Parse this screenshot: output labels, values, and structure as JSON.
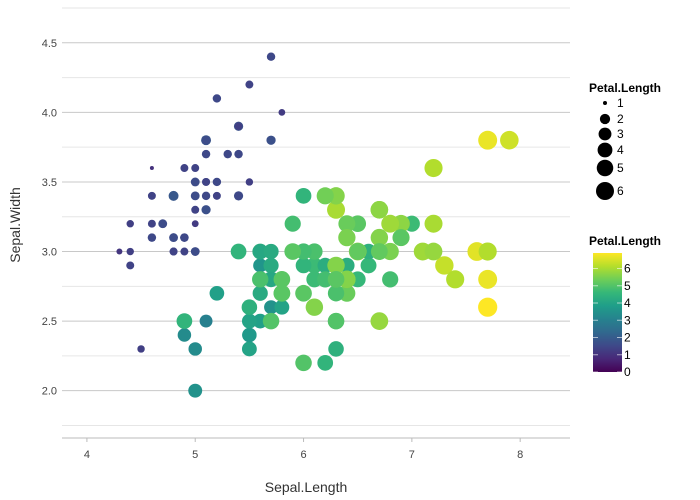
{
  "chart_data": {
    "type": "scatter",
    "xlabel": "Sepal.Length",
    "ylabel": "Sepal.Width",
    "xlim": [
      3.77,
      8.46
    ],
    "ylim": [
      1.66,
      4.75
    ],
    "x_ticks": [
      4,
      5,
      6,
      7,
      8
    ],
    "y_ticks": [
      2.0,
      2.5,
      3.0,
      3.5,
      4.0,
      4.5
    ],
    "x_tick_labels": [
      "4",
      "5",
      "6",
      "7",
      "8"
    ],
    "y_tick_labels": [
      "2.0",
      "2.5",
      "3.0",
      "3.5",
      "4.0",
      "4.5"
    ],
    "grid": "horizontal",
    "size_legend": {
      "title": "Petal.Length",
      "values": [
        1,
        2,
        3,
        4,
        5,
        6
      ],
      "labels": [
        "1",
        "2",
        "3",
        "4",
        "5",
        "6"
      ],
      "placement": "right"
    },
    "color_legend": {
      "title": "Petal.Length",
      "range": [
        0,
        6.9
      ],
      "ticks": [
        0,
        1,
        2,
        3,
        4,
        5,
        6
      ],
      "labels": [
        "0",
        "1",
        "2",
        "3",
        "4",
        "5",
        "6"
      ],
      "palette": [
        "#440154",
        "#482878",
        "#3e4989",
        "#31688e",
        "#26828e",
        "#1f9e89",
        "#35b779",
        "#6ece58",
        "#b5de2b",
        "#fde725"
      ],
      "placement": "right"
    },
    "columns": [
      "Sepal.Length",
      "Sepal.Width",
      "Petal.Length"
    ],
    "points": [
      [
        5.1,
        3.5,
        1.4
      ],
      [
        4.9,
        3.0,
        1.4
      ],
      [
        4.7,
        3.2,
        1.3
      ],
      [
        4.6,
        3.1,
        1.5
      ],
      [
        5.0,
        3.6,
        1.4
      ],
      [
        5.4,
        3.9,
        1.7
      ],
      [
        4.6,
        3.4,
        1.4
      ],
      [
        5.0,
        3.4,
        1.5
      ],
      [
        4.4,
        2.9,
        1.4
      ],
      [
        4.9,
        3.1,
        1.5
      ],
      [
        5.4,
        3.7,
        1.5
      ],
      [
        4.8,
        3.4,
        1.6
      ],
      [
        4.8,
        3.0,
        1.4
      ],
      [
        4.3,
        3.0,
        1.1
      ],
      [
        5.8,
        4.0,
        1.2
      ],
      [
        5.7,
        4.4,
        1.5
      ],
      [
        5.4,
        3.9,
        1.3
      ],
      [
        5.1,
        3.5,
        1.4
      ],
      [
        5.7,
        3.8,
        1.7
      ],
      [
        5.1,
        3.8,
        1.5
      ],
      [
        5.4,
        3.4,
        1.7
      ],
      [
        5.1,
        3.7,
        1.5
      ],
      [
        4.6,
        3.6,
        1.0
      ],
      [
        5.1,
        3.3,
        1.7
      ],
      [
        4.8,
        3.4,
        1.9
      ],
      [
        5.0,
        3.0,
        1.6
      ],
      [
        5.0,
        3.4,
        1.6
      ],
      [
        5.2,
        3.5,
        1.5
      ],
      [
        5.2,
        3.4,
        1.4
      ],
      [
        4.7,
        3.2,
        1.6
      ],
      [
        4.8,
        3.1,
        1.6
      ],
      [
        5.4,
        3.4,
        1.5
      ],
      [
        5.2,
        4.1,
        1.5
      ],
      [
        5.5,
        4.2,
        1.4
      ],
      [
        4.9,
        3.1,
        1.5
      ],
      [
        5.0,
        3.2,
        1.2
      ],
      [
        5.5,
        3.5,
        1.3
      ],
      [
        4.9,
        3.6,
        1.4
      ],
      [
        4.4,
        3.0,
        1.3
      ],
      [
        5.1,
        3.4,
        1.5
      ],
      [
        5.0,
        3.5,
        1.3
      ],
      [
        4.5,
        2.3,
        1.3
      ],
      [
        4.4,
        3.2,
        1.3
      ],
      [
        5.0,
        3.5,
        1.6
      ],
      [
        5.1,
        3.8,
        1.9
      ],
      [
        4.8,
        3.0,
        1.4
      ],
      [
        5.1,
        3.8,
        1.6
      ],
      [
        4.6,
        3.2,
        1.4
      ],
      [
        5.3,
        3.7,
        1.5
      ],
      [
        5.0,
        3.3,
        1.4
      ],
      [
        7.0,
        3.2,
        4.7
      ],
      [
        6.4,
        3.2,
        4.5
      ],
      [
        6.9,
        3.1,
        4.9
      ],
      [
        5.5,
        2.3,
        4.0
      ],
      [
        6.5,
        2.8,
        4.6
      ],
      [
        5.7,
        2.8,
        4.5
      ],
      [
        6.3,
        3.3,
        4.7
      ],
      [
        4.9,
        2.4,
        3.3
      ],
      [
        6.6,
        2.9,
        4.6
      ],
      [
        5.2,
        2.7,
        3.9
      ],
      [
        5.0,
        2.0,
        3.5
      ],
      [
        5.9,
        3.0,
        4.2
      ],
      [
        6.0,
        2.2,
        4.0
      ],
      [
        6.1,
        2.9,
        4.7
      ],
      [
        5.6,
        2.9,
        3.6
      ],
      [
        6.7,
        3.1,
        4.4
      ],
      [
        5.6,
        3.0,
        4.5
      ],
      [
        5.8,
        2.7,
        4.1
      ],
      [
        6.2,
        2.2,
        4.5
      ],
      [
        5.6,
        2.5,
        3.9
      ],
      [
        5.9,
        3.2,
        4.8
      ],
      [
        6.1,
        2.8,
        4.0
      ],
      [
        6.3,
        2.5,
        4.9
      ],
      [
        6.1,
        2.8,
        4.7
      ],
      [
        6.4,
        2.9,
        4.3
      ],
      [
        6.6,
        3.0,
        4.4
      ],
      [
        6.8,
        2.8,
        4.8
      ],
      [
        6.7,
        3.0,
        5.0
      ],
      [
        6.0,
        2.9,
        4.5
      ],
      [
        5.7,
        2.6,
        3.5
      ],
      [
        5.5,
        2.4,
        3.8
      ],
      [
        5.5,
        2.4,
        3.7
      ],
      [
        5.8,
        2.7,
        3.9
      ],
      [
        6.0,
        2.7,
        5.1
      ],
      [
        5.4,
        3.0,
        4.5
      ],
      [
        6.0,
        3.4,
        4.5
      ],
      [
        6.7,
        3.1,
        4.7
      ],
      [
        6.3,
        2.3,
        4.4
      ],
      [
        5.6,
        3.0,
        4.1
      ],
      [
        5.5,
        2.5,
        4.0
      ],
      [
        5.5,
        2.6,
        4.4
      ],
      [
        6.1,
        3.0,
        4.6
      ],
      [
        5.8,
        2.6,
        4.0
      ],
      [
        5.0,
        2.3,
        3.3
      ],
      [
        5.6,
        2.7,
        4.2
      ],
      [
        5.7,
        3.0,
        4.2
      ],
      [
        5.7,
        2.9,
        4.2
      ],
      [
        6.2,
        2.9,
        4.3
      ],
      [
        5.1,
        2.5,
        3.0
      ],
      [
        5.7,
        2.8,
        4.1
      ],
      [
        6.3,
        3.3,
        6.0
      ],
      [
        5.8,
        2.7,
        5.1
      ],
      [
        7.1,
        3.0,
        5.9
      ],
      [
        6.3,
        2.9,
        5.6
      ],
      [
        6.5,
        3.0,
        5.8
      ],
      [
        7.6,
        3.0,
        6.6
      ],
      [
        4.9,
        2.5,
        4.5
      ],
      [
        7.3,
        2.9,
        6.3
      ],
      [
        6.7,
        2.5,
        5.8
      ],
      [
        7.2,
        3.6,
        6.1
      ],
      [
        6.5,
        3.2,
        5.1
      ],
      [
        6.4,
        2.7,
        5.3
      ],
      [
        6.8,
        3.0,
        5.5
      ],
      [
        5.7,
        2.5,
        5.0
      ],
      [
        5.8,
        2.8,
        5.1
      ],
      [
        6.4,
        3.2,
        5.3
      ],
      [
        6.5,
        3.0,
        5.5
      ],
      [
        7.7,
        3.8,
        6.7
      ],
      [
        7.7,
        2.6,
        6.9
      ],
      [
        6.0,
        2.2,
        5.0
      ],
      [
        6.9,
        3.2,
        5.7
      ],
      [
        5.6,
        2.8,
        4.9
      ],
      [
        7.7,
        2.8,
        6.7
      ],
      [
        6.3,
        2.7,
        4.9
      ],
      [
        6.7,
        3.3,
        5.7
      ],
      [
        7.2,
        3.2,
        6.0
      ],
      [
        6.2,
        2.8,
        4.8
      ],
      [
        6.1,
        3.0,
        4.9
      ],
      [
        6.4,
        2.8,
        5.6
      ],
      [
        7.2,
        3.0,
        5.8
      ],
      [
        7.4,
        2.8,
        6.1
      ],
      [
        7.9,
        3.8,
        6.4
      ],
      [
        6.4,
        2.8,
        5.6
      ],
      [
        6.3,
        2.8,
        5.1
      ],
      [
        6.1,
        2.6,
        5.6
      ],
      [
        7.7,
        3.0,
        6.1
      ],
      [
        6.3,
        3.4,
        5.6
      ],
      [
        6.4,
        3.1,
        5.5
      ],
      [
        6.0,
        3.0,
        4.8
      ],
      [
        6.9,
        3.1,
        5.4
      ],
      [
        6.7,
        3.1,
        5.6
      ],
      [
        6.9,
        3.1,
        5.1
      ],
      [
        5.8,
        2.7,
        5.1
      ],
      [
        6.8,
        3.2,
        5.9
      ],
      [
        6.7,
        3.3,
        5.7
      ],
      [
        6.7,
        3.0,
        5.2
      ],
      [
        6.3,
        2.5,
        5.0
      ],
      [
        6.5,
        3.0,
        5.2
      ],
      [
        6.2,
        3.4,
        5.4
      ],
      [
        5.9,
        3.0,
        5.1
      ]
    ]
  }
}
